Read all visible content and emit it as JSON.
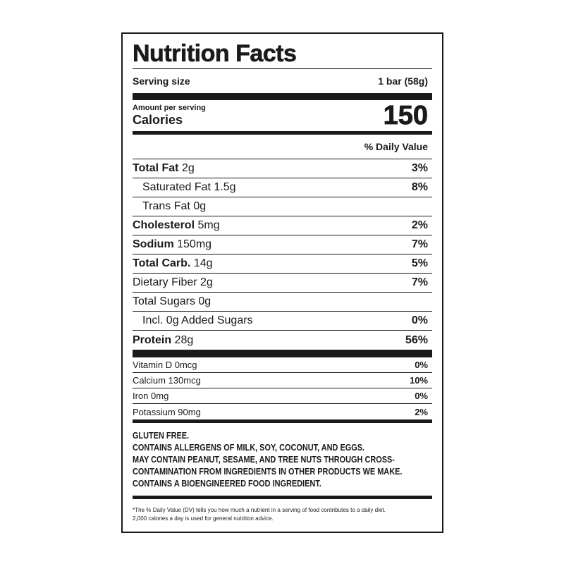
{
  "title": "Nutrition Facts",
  "serving": {
    "label": "Serving size",
    "value": "1 bar (58g)"
  },
  "amount": {
    "label": "Amount per serving",
    "calories_label": "Calories",
    "calories": "150"
  },
  "dv_header": "% Daily Value",
  "nutrients": [
    {
      "name": "Total Fat",
      "amount": "2g",
      "pct": "3%",
      "bold": true,
      "indent": false
    },
    {
      "name": "Saturated Fat",
      "amount": "1.5g",
      "pct": "8%",
      "bold": false,
      "indent": true
    },
    {
      "name": "Trans Fat",
      "amount": "0g",
      "pct": "",
      "bold": false,
      "indent": true
    },
    {
      "name": "Cholesterol",
      "amount": "5mg",
      "pct": "2%",
      "bold": true,
      "indent": false
    },
    {
      "name": "Sodium",
      "amount": "150mg",
      "pct": "7%",
      "bold": true,
      "indent": false
    },
    {
      "name": "Total Carb.",
      "amount": "14g",
      "pct": "5%",
      "bold": true,
      "indent": false
    },
    {
      "name": "Dietary Fiber",
      "amount": "2g",
      "pct": "7%",
      "bold": false,
      "indent": false
    },
    {
      "name": "Total Sugars",
      "amount": "0g",
      "pct": "",
      "bold": false,
      "indent": false
    },
    {
      "name": "Incl. 0g Added Sugars",
      "amount": "",
      "pct": "0%",
      "bold": false,
      "indent": true
    },
    {
      "name": "Protein",
      "amount": "28g",
      "pct": "56%",
      "bold": true,
      "indent": false
    }
  ],
  "vitamins": [
    {
      "name": "Vitamin D 0mcg",
      "pct": "0%"
    },
    {
      "name": "Calcium 130mcg",
      "pct": "10%"
    },
    {
      "name": "Iron 0mg",
      "pct": "0%"
    },
    {
      "name": "Potassium 90mg",
      "pct": "2%"
    }
  ],
  "notes": [
    "GLUTEN FREE.",
    "CONTAINS ALLERGENS OF MILK, SOY, COCONUT, AND EGGS.",
    "MAY CONTAIN PEANUT, SESAME, AND TREE NUTS THROUGH CROSS-",
    "CONTAMINATION FROM INGREDIENTS IN OTHER PRODUCTS WE MAKE.",
    "CONTAINS A BIOENGINEERED FOOD INGREDIENT."
  ],
  "footnote": [
    "*The % Daily Value (DV) tells you how much a nutrient in a serving of food contributes to a daily diet.",
    "2,000 calories a day is used for general nutrition advice."
  ]
}
